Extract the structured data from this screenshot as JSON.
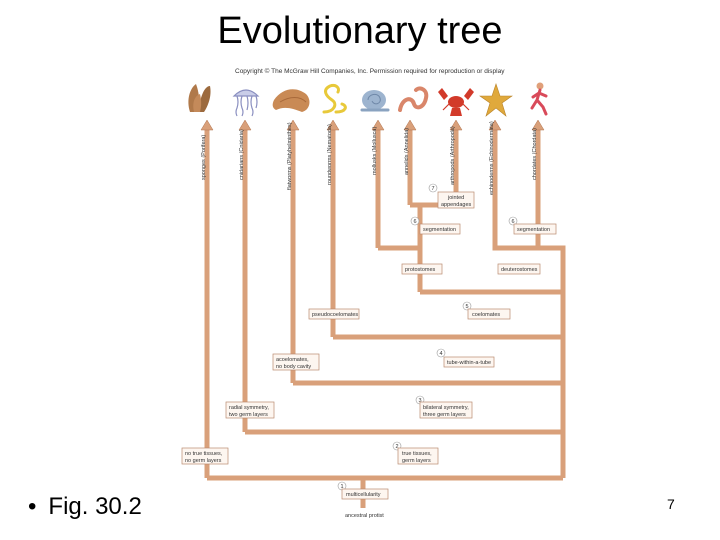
{
  "slide": {
    "title": "Evolutionary tree",
    "caption": "Fig. 30.2",
    "page_number": "7"
  },
  "figure": {
    "copyright": "Copyright © The McGraw Hill Companies, Inc. Permission required for reproduction or display",
    "root_label": "ancestral protist",
    "phyla": [
      {
        "label": "sponges (Porifera)",
        "icon": "sponge-icon"
      },
      {
        "label": "cnidarians (Cnidaria)",
        "icon": "jellyfish-icon"
      },
      {
        "label": "flatworms (Platyhelminthes)",
        "icon": "flatworm-icon"
      },
      {
        "label": "roundworms (Nematoda)",
        "icon": "roundworm-icon"
      },
      {
        "label": "mollusks (Mollusca)",
        "icon": "snail-icon"
      },
      {
        "label": "annelids (Annelida)",
        "icon": "earthworm-icon"
      },
      {
        "label": "arthropods (Arthropoda)",
        "icon": "lobster-icon"
      },
      {
        "label": "echinoderms (Echinodermata)",
        "icon": "sea-star-icon"
      },
      {
        "label": "chordates (Chordata)",
        "icon": "human-icon"
      }
    ],
    "boxes": {
      "multicellularity": "multicellularity",
      "no_true_tissues": [
        "no true tissues,",
        "no germ layers"
      ],
      "true_tissues": [
        "true tissues,",
        "germ layers"
      ],
      "radial_symmetry": [
        "radial symmetry,",
        "two germ layers"
      ],
      "bilateral_symmetry": [
        "bilateral symmetry,",
        "three germ layers"
      ],
      "acoelomates": [
        "acoelomates,",
        "no body cavity"
      ],
      "tube_within_tube": "tube-within-a-tube",
      "pseudocoelomates": "pseudocoelomates",
      "coelomates": "coelomates",
      "protostomes": "protostomes",
      "deuterostomes": "deuterostomes",
      "segmentation_proto": "segmentation",
      "segmentation_deutero": "segmentation",
      "jointed_appendages": [
        "jointed",
        "appendages"
      ]
    },
    "node_numbers": [
      "1",
      "2",
      "3",
      "4",
      "5",
      "6",
      "6",
      "7"
    ],
    "colors": {
      "branch": "#d9a07a",
      "branch_edge": "#b0724e"
    }
  }
}
